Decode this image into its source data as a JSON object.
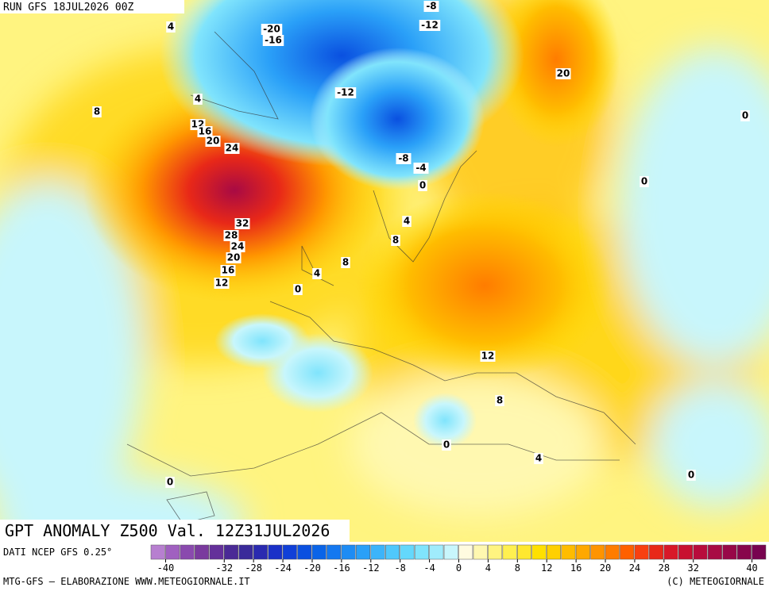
{
  "header": {
    "run": "RUN GFS 18JUL2026 00Z"
  },
  "map": {
    "title": "GPT ANOMALY Z500 Val. 12Z31JUL2026",
    "contour_labels": [
      -8,
      -20,
      -16,
      -12,
      4,
      -12,
      20,
      4,
      8,
      0,
      12,
      16,
      20,
      24,
      -8,
      -4,
      0,
      0,
      32,
      4,
      28,
      8,
      24,
      20,
      8,
      16,
      4,
      12,
      0,
      12,
      8,
      0,
      4,
      0,
      0
    ]
  },
  "colorbar": {
    "source": "DATI NCEP GFS 0.25°",
    "lim": [
      -42,
      42
    ],
    "ticks": [
      -40,
      -32,
      -28,
      -24,
      -20,
      -16,
      -12,
      -8,
      -4,
      0,
      4,
      8,
      12,
      16,
      20,
      24,
      28,
      32,
      40
    ],
    "colors": [
      "#b77fd0",
      "#a060c0",
      "#8a4aae",
      "#7a3a9e",
      "#64309a",
      "#4a2a96",
      "#3a2a9a",
      "#2a2ab0",
      "#1a30c8",
      "#1040d8",
      "#0a50e0",
      "#0a64e8",
      "#1478f0",
      "#1e8cf4",
      "#2aa0f8",
      "#3cb4fa",
      "#50c8fc",
      "#64d8fc",
      "#80e4fc",
      "#a0ecfc",
      "#c8f6fc",
      "#fffbe0",
      "#fff8b0",
      "#fff480",
      "#fff050",
      "#ffe830",
      "#ffe000",
      "#ffd000",
      "#ffbc00",
      "#ffa800",
      "#ff9400",
      "#ff7c00",
      "#ff6000",
      "#f84010",
      "#e82818",
      "#d81828",
      "#c81030",
      "#b80c3c",
      "#a80a44",
      "#980848",
      "#88064c",
      "#780450"
    ]
  },
  "footer": {
    "left": "MTG-GFS — ELABORAZIONE WWW.METEOGIORNALE.IT",
    "right": "(C) METEOGIORNALE"
  }
}
